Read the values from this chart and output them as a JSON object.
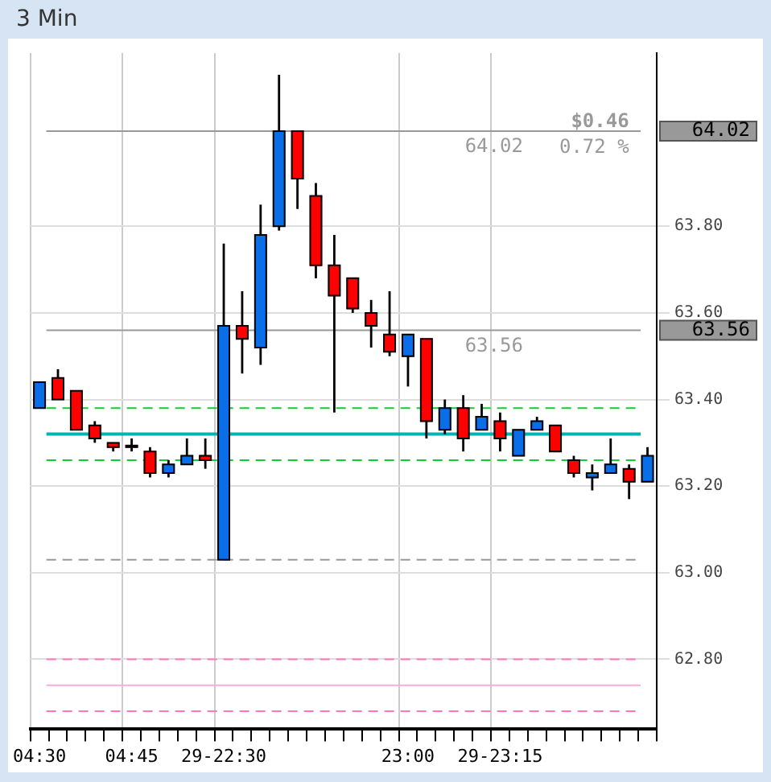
{
  "chart_data": {
    "type": "candlestick",
    "title": "3 Min",
    "categories": [
      "04:30",
      null,
      null,
      null,
      null,
      "04:45",
      null,
      null,
      null,
      null,
      "29-22:30",
      null,
      null,
      null,
      null,
      null,
      null,
      null,
      null,
      null,
      "23:00",
      null,
      null,
      null,
      null,
      "29-23:15",
      null,
      null,
      null,
      null,
      null,
      null,
      null,
      null
    ],
    "ohlc": [
      [
        63.38,
        63.44,
        63.38,
        63.44
      ],
      [
        63.45,
        63.47,
        63.4,
        63.4
      ],
      [
        63.42,
        63.42,
        63.33,
        63.33
      ],
      [
        63.34,
        63.35,
        63.3,
        63.31
      ],
      [
        63.3,
        63.3,
        63.28,
        63.29
      ],
      [
        63.29,
        63.31,
        63.28,
        63.29
      ],
      [
        63.28,
        63.29,
        63.22,
        63.23
      ],
      [
        63.23,
        63.26,
        63.22,
        63.25
      ],
      [
        63.25,
        63.31,
        63.25,
        63.27
      ],
      [
        63.27,
        63.31,
        63.24,
        63.26
      ],
      [
        63.03,
        63.76,
        63.03,
        63.57
      ],
      [
        63.57,
        63.65,
        63.46,
        63.54
      ],
      [
        63.52,
        63.85,
        63.48,
        63.78
      ],
      [
        63.8,
        64.15,
        63.79,
        64.02
      ],
      [
        64.02,
        64.02,
        63.84,
        63.91
      ],
      [
        63.87,
        63.9,
        63.68,
        63.71
      ],
      [
        63.71,
        63.78,
        63.37,
        63.64
      ],
      [
        63.68,
        63.68,
        63.6,
        63.61
      ],
      [
        63.6,
        63.63,
        63.52,
        63.57
      ],
      [
        63.55,
        63.65,
        63.5,
        63.51
      ],
      [
        63.5,
        63.55,
        63.43,
        63.55
      ],
      [
        63.54,
        63.54,
        63.31,
        63.35
      ],
      [
        63.33,
        63.4,
        63.32,
        63.38
      ],
      [
        63.38,
        63.41,
        63.28,
        63.31
      ],
      [
        63.33,
        63.39,
        63.33,
        63.36
      ],
      [
        63.35,
        63.37,
        63.28,
        63.31
      ],
      [
        63.27,
        63.33,
        63.27,
        63.33
      ],
      [
        63.33,
        63.36,
        63.33,
        63.35
      ],
      [
        63.34,
        63.34,
        63.28,
        63.28
      ],
      [
        63.26,
        63.27,
        63.22,
        63.23
      ],
      [
        63.22,
        63.25,
        63.19,
        63.23
      ],
      [
        63.23,
        63.31,
        63.23,
        63.25
      ],
      [
        63.24,
        63.25,
        63.17,
        63.21
      ],
      [
        63.21,
        63.29,
        63.21,
        63.27
      ]
    ],
    "colors": [
      "#0a6ee8",
      "#ff0000",
      "#ff0000",
      "#ff0000",
      "#ff0000",
      "#ff0000",
      "#ff0000",
      "#0a6ee8",
      "#0a6ee8",
      "#ff0000",
      "#0a6ee8",
      "#ff0000",
      "#0a6ee8",
      "#0a6ee8",
      "#ff0000",
      "#ff0000",
      "#ff0000",
      "#ff0000",
      "#ff0000",
      "#ff0000",
      "#0a6ee8",
      "#ff0000",
      "#0a6ee8",
      "#ff0000",
      "#0a6ee8",
      "#ff0000",
      "#0a6ee8",
      "#0a6ee8",
      "#ff0000",
      "#ff0000",
      "#0a6ee8",
      "#0a6ee8",
      "#ff0000",
      "#0a6ee8"
    ],
    "ylim": [
      62.64,
      64.2
    ],
    "yticks": [
      {
        "value": 62.8,
        "label": "62.80"
      },
      {
        "value": 63.0,
        "label": "63.00"
      },
      {
        "value": 63.2,
        "label": "63.20"
      },
      {
        "value": 63.4,
        "label": "63.40"
      },
      {
        "value": 63.6,
        "label": "63.60"
      },
      {
        "value": 63.8,
        "label": "63.80"
      }
    ],
    "ref_lines": [
      {
        "axis": "y",
        "value": 64.02,
        "label": "64.02",
        "color": "#999999",
        "line_style": "solid"
      },
      {
        "axis": "y",
        "value": 63.56,
        "label": "63.56",
        "color": "#999999",
        "line_style": "solid"
      },
      {
        "axis": "y",
        "value": 63.38,
        "color": "#11cc33",
        "line_style": "dashed"
      },
      {
        "axis": "y",
        "value": 63.32,
        "color": "#00b4b4",
        "line_style": "solid"
      },
      {
        "axis": "y",
        "value": 63.26,
        "color": "#11cc33",
        "line_style": "dashed"
      },
      {
        "axis": "y",
        "value": 63.03,
        "color": "#999999",
        "line_style": "dashed"
      },
      {
        "axis": "y",
        "value": 62.8,
        "color": "#ff77bb",
        "line_style": "dashed"
      },
      {
        "axis": "y",
        "value": 62.74,
        "color": "#ffaad8",
        "line_style": "solid"
      },
      {
        "axis": "y",
        "value": 62.68,
        "color": "#ff77bb",
        "line_style": "dashed"
      }
    ],
    "annotations": [
      "$0.46",
      "0.72 %"
    ],
    "grid": true,
    "legend": false
  }
}
